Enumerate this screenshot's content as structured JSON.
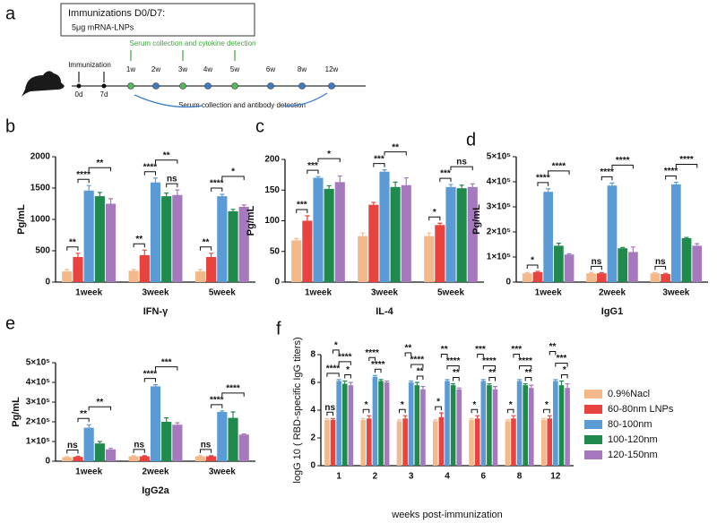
{
  "diagram": {
    "panel": "a",
    "box_title": "Immunizations D0/D7:",
    "box_dose": "5μg  mRNA-LNPs",
    "immunization": "Immunization",
    "cytokine_note": "Serum collection and cytokine detection",
    "antibody_note": "Serum collection and antibody detection",
    "timepoints": [
      "0d",
      "7d",
      "1w",
      "2w",
      "3w",
      "4w",
      "5w",
      "6w",
      "8w",
      "12w"
    ]
  },
  "chart_data": [
    {
      "type": "bar",
      "panel": "b",
      "ylabel": "Pg/mL",
      "xlabel": "IFN-γ",
      "categories": [
        "1week",
        "3week",
        "5week"
      ],
      "ylim": [
        0,
        2000
      ],
      "yticks": [
        0,
        500,
        1000,
        1500,
        2000
      ],
      "series": [
        {
          "color": "#f4b98b",
          "values": [
            170,
            180,
            170
          ],
          "errors": [
            30,
            20,
            30
          ]
        },
        {
          "color": "#e8433e",
          "values": [
            400,
            430,
            400
          ],
          "errors": [
            60,
            80,
            60
          ]
        },
        {
          "color": "#5b9bd5",
          "values": [
            1460,
            1590,
            1370
          ],
          "errors": [
            80,
            70,
            30
          ]
        },
        {
          "color": "#1f8a4c",
          "values": [
            1370,
            1370,
            1130
          ],
          "errors": [
            60,
            50,
            30
          ]
        },
        {
          "color": "#a678bd",
          "values": [
            1250,
            1390,
            1200
          ],
          "errors": [
            80,
            80,
            30
          ]
        }
      ],
      "annotations": [
        [
          {
            "text": "**",
            "from": 0,
            "to": 1
          },
          {
            "text": "****",
            "from": 1,
            "to": 2
          },
          {
            "text": "**",
            "from": 2,
            "to": 4
          }
        ],
        [
          {
            "text": "**",
            "from": 0,
            "to": 1
          },
          {
            "text": "****",
            "from": 1,
            "to": 2
          },
          {
            "text": "ns",
            "from": 3,
            "to": 4
          },
          {
            "text": "**",
            "from": 2,
            "to": 4
          }
        ],
        [
          {
            "text": "**",
            "from": 0,
            "to": 1
          },
          {
            "text": "****",
            "from": 1,
            "to": 2
          },
          {
            "text": "*",
            "from": 2,
            "to": 4
          }
        ]
      ]
    },
    {
      "type": "bar",
      "panel": "c",
      "ylabel": "Pg/mL",
      "xlabel": "IL-4",
      "categories": [
        "1week",
        "3week",
        "5week"
      ],
      "ylim": [
        0,
        200
      ],
      "yticks": [
        0,
        50,
        100,
        150,
        200
      ],
      "series": [
        {
          "color": "#f4b98b",
          "values": [
            68,
            75,
            75
          ],
          "errors": [
            3,
            5,
            5
          ]
        },
        {
          "color": "#e8433e",
          "values": [
            100,
            126,
            93
          ],
          "errors": [
            8,
            4,
            3
          ]
        },
        {
          "color": "#5b9bd5",
          "values": [
            170,
            180,
            155
          ],
          "errors": [
            2,
            3,
            4
          ]
        },
        {
          "color": "#1f8a4c",
          "values": [
            152,
            155,
            153
          ],
          "errors": [
            5,
            8,
            5
          ]
        },
        {
          "color": "#a678bd",
          "values": [
            163,
            158,
            155
          ],
          "errors": [
            10,
            12,
            5
          ]
        }
      ],
      "annotations": [
        [
          {
            "text": "***",
            "from": 0,
            "to": 1
          },
          {
            "text": "***",
            "from": 1,
            "to": 2
          },
          {
            "text": "*",
            "from": 2,
            "to": 4
          }
        ],
        [
          {
            "text": "***",
            "from": 1,
            "to": 2
          },
          {
            "text": "**",
            "from": 2,
            "to": 4
          }
        ],
        [
          {
            "text": "*",
            "from": 0,
            "to": 1
          },
          {
            "text": "***",
            "from": 1,
            "to": 2
          },
          {
            "text": "ns",
            "from": 2,
            "to": 4
          }
        ]
      ]
    },
    {
      "type": "bar",
      "panel": "d",
      "ylabel": "Pg/mL",
      "xlabel": "IgG1",
      "categories": [
        "1week",
        "2week",
        "3week"
      ],
      "ylim": [
        0,
        500000
      ],
      "yticks": [
        0,
        {
          "value": 100000,
          "label": "1×10⁵"
        },
        {
          "value": 200000,
          "label": "2×10⁵"
        },
        {
          "value": 300000,
          "label": "3×10⁵"
        },
        {
          "value": 400000,
          "label": "4×10⁵"
        },
        {
          "value": 500000,
          "label": "5×10⁵"
        }
      ],
      "series": [
        {
          "color": "#f4b98b",
          "values": [
            35000,
            35000,
            35000
          ],
          "errors": [
            3000,
            3000,
            3000
          ]
        },
        {
          "color": "#e8433e",
          "values": [
            40000,
            35000,
            32000
          ],
          "errors": [
            3000,
            3000,
            3000
          ]
        },
        {
          "color": "#5b9bd5",
          "values": [
            360000,
            385000,
            390000
          ],
          "errors": [
            12000,
            10000,
            8000
          ]
        },
        {
          "color": "#1f8a4c",
          "values": [
            145000,
            135000,
            175000
          ],
          "errors": [
            10000,
            3000,
            3000
          ]
        },
        {
          "color": "#a678bd",
          "values": [
            110000,
            120000,
            145000
          ],
          "errors": [
            3000,
            20000,
            8000
          ]
        }
      ],
      "annotations": [
        [
          {
            "text": "*",
            "from": 0,
            "to": 1
          },
          {
            "text": "****",
            "from": 1,
            "to": 2
          },
          {
            "text": "****",
            "from": 2,
            "to": 4
          }
        ],
        [
          {
            "text": "ns",
            "from": 0,
            "to": 1
          },
          {
            "text": "****",
            "from": 1,
            "to": 2
          },
          {
            "text": "****",
            "from": 2,
            "to": 4
          }
        ],
        [
          {
            "text": "ns",
            "from": 0,
            "to": 1
          },
          {
            "text": "****",
            "from": 1,
            "to": 2
          },
          {
            "text": "****",
            "from": 2,
            "to": 4
          }
        ]
      ]
    },
    {
      "type": "bar",
      "panel": "e",
      "ylabel": "Pg/mL",
      "xlabel": "IgG2a",
      "categories": [
        "1week",
        "2week",
        "3week"
      ],
      "ylim": [
        0,
        500000
      ],
      "yticks": [
        0,
        {
          "value": 100000,
          "label": "1×10⁵"
        },
        {
          "value": 200000,
          "label": "2×10⁵"
        },
        {
          "value": 300000,
          "label": "3×10⁵"
        },
        {
          "value": 400000,
          "label": "4×10⁵"
        },
        {
          "value": 500000,
          "label": "5×10⁵"
        }
      ],
      "series": [
        {
          "color": "#f4b98b",
          "values": [
            20000,
            25000,
            25000
          ],
          "errors": [
            3000,
            3000,
            3000
          ]
        },
        {
          "color": "#e8433e",
          "values": [
            22000,
            25000,
            25000
          ],
          "errors": [
            3000,
            3000,
            3000
          ]
        },
        {
          "color": "#5b9bd5",
          "values": [
            170000,
            380000,
            250000
          ],
          "errors": [
            15000,
            8000,
            5000
          ]
        },
        {
          "color": "#1f8a4c",
          "values": [
            90000,
            200000,
            220000
          ],
          "errors": [
            10000,
            20000,
            30000
          ]
        },
        {
          "color": "#a678bd",
          "values": [
            60000,
            185000,
            135000
          ],
          "errors": [
            5000,
            10000,
            3000
          ]
        }
      ],
      "annotations": [
        [
          {
            "text": "ns",
            "from": 0,
            "to": 1
          },
          {
            "text": "**",
            "from": 1,
            "to": 2
          },
          {
            "text": "**",
            "from": 2,
            "to": 4
          }
        ],
        [
          {
            "text": "ns",
            "from": 0,
            "to": 1
          },
          {
            "text": "****",
            "from": 1,
            "to": 2
          },
          {
            "text": "***",
            "from": 2,
            "to": 4
          }
        ],
        [
          {
            "text": "ns",
            "from": 0,
            "to": 1
          },
          {
            "text": "****",
            "from": 1,
            "to": 2
          },
          {
            "text": "****",
            "from": 2,
            "to": 4
          }
        ]
      ]
    },
    {
      "type": "bar",
      "panel": "f",
      "ylabel": "logG 10 ( RBD-specific IgG titers)",
      "xlabel": "weeks post-immunization",
      "categories": [
        "1",
        "2",
        "3",
        "4",
        "6",
        "8",
        "12"
      ],
      "ylim": [
        0,
        8
      ],
      "yticks": [
        0,
        2,
        4,
        6,
        8
      ],
      "legend": "right",
      "series": [
        {
          "name": "0.9%Nacl",
          "color": "#f4b98b",
          "values": [
            3.3,
            3.3,
            3.2,
            3.2,
            3.3,
            3.2,
            3.3
          ],
          "errors": [
            0.1,
            0.1,
            0.1,
            0.1,
            0.1,
            0.1,
            0.1
          ]
        },
        {
          "name": "60-80nm LNPs",
          "color": "#e8433e",
          "values": [
            3.3,
            3.4,
            3.4,
            3.5,
            3.4,
            3.4,
            3.4
          ],
          "errors": [
            0.1,
            0.2,
            0.2,
            0.3,
            0.2,
            0.2,
            0.2
          ]
        },
        {
          "name": "80-100nm",
          "color": "#5b9bd5",
          "values": [
            6.1,
            6.4,
            6.0,
            6.1,
            6.1,
            6.1,
            6.1
          ],
          "errors": [
            0.1,
            0.1,
            0.1,
            0.1,
            0.1,
            0.1,
            0.1
          ]
        },
        {
          "name": "100-120nm",
          "color": "#1f8a4c",
          "values": [
            5.9,
            6.1,
            5.8,
            5.8,
            5.8,
            5.8,
            5.8
          ],
          "errors": [
            0.2,
            0.1,
            0.2,
            0.1,
            0.1,
            0.1,
            0.3
          ]
        },
        {
          "name": "120-150nm",
          "color": "#a678bd",
          "values": [
            5.8,
            6.0,
            5.5,
            5.5,
            5.5,
            5.6,
            5.6
          ],
          "errors": [
            0.2,
            0.1,
            0.2,
            0.1,
            0.2,
            0.2,
            0.3
          ]
        }
      ],
      "annotations": [
        [
          {
            "text": "ns",
            "from": 0,
            "to": 1
          },
          {
            "text": "****",
            "from": 0,
            "to": 2
          },
          {
            "text": "*",
            "from": 3,
            "to": 4
          },
          {
            "text": "****",
            "from": 2,
            "to": 4
          },
          {
            "text": "*",
            "from": 1,
            "to": 2
          }
        ],
        [
          {
            "text": "*",
            "from": 0,
            "to": 1
          },
          {
            "text": "****",
            "from": 2,
            "to": 3
          },
          {
            "text": "****",
            "from": 1,
            "to": 2
          }
        ],
        [
          {
            "text": "*",
            "from": 0,
            "to": 1
          },
          {
            "text": "**",
            "from": 3,
            "to": 4
          },
          {
            "text": "****",
            "from": 2,
            "to": 4
          },
          {
            "text": "**",
            "from": 1,
            "to": 2
          }
        ],
        [
          {
            "text": "*",
            "from": 0,
            "to": 1
          },
          {
            "text": "**",
            "from": 3,
            "to": 4
          },
          {
            "text": "****",
            "from": 2,
            "to": 4
          },
          {
            "text": "**",
            "from": 1,
            "to": 2
          }
        ],
        [
          {
            "text": "*",
            "from": 0,
            "to": 1
          },
          {
            "text": "**",
            "from": 3,
            "to": 4
          },
          {
            "text": "****",
            "from": 2,
            "to": 4
          },
          {
            "text": "***",
            "from": 1,
            "to": 2
          }
        ],
        [
          {
            "text": "*",
            "from": 0,
            "to": 1
          },
          {
            "text": "**",
            "from": 3,
            "to": 4
          },
          {
            "text": "****",
            "from": 2,
            "to": 4
          },
          {
            "text": "***",
            "from": 1,
            "to": 2
          }
        ],
        [
          {
            "text": "*",
            "from": 0,
            "to": 1
          },
          {
            "text": "*",
            "from": 3,
            "to": 4
          },
          {
            "text": "***",
            "from": 2,
            "to": 4
          },
          {
            "text": "**",
            "from": 1,
            "to": 2
          }
        ]
      ]
    }
  ]
}
